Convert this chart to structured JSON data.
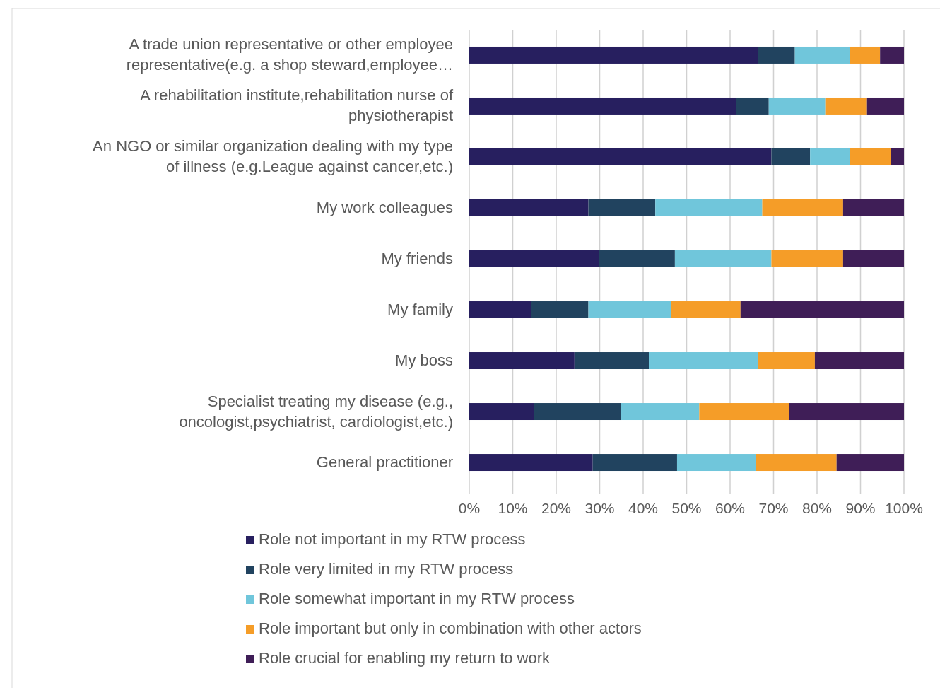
{
  "chart_data": {
    "type": "bar",
    "orientation": "horizontal",
    "stacked": true,
    "categories": [
      "A trade union representative or other employee representative(e.g. a shop steward,employee…",
      "A rehabilitation institute,rehabilitation nurse of physiotherapist",
      "An NGO or similar organization dealing with my type of illness (e.g.League against cancer,etc.)",
      "My work colleagues",
      "My friends",
      "My family",
      "My boss",
      "Specialist treating my disease (e.g., oncologist,psychiatrist, cardiologist,etc.)",
      "General practitioner"
    ],
    "series": [
      {
        "name": "Role not important in my RTW process",
        "color": "#271f5f",
        "values": [
          66.4,
          61.4,
          69.5,
          27.4,
          29.8,
          14.3,
          24.2,
          14.8,
          28.4
        ]
      },
      {
        "name": "Role very limited in my RTW process",
        "color": "#21435f",
        "values": [
          8.5,
          7.5,
          8.9,
          15.4,
          17.5,
          13.1,
          17.1,
          20.0,
          19.4
        ]
      },
      {
        "name": "Role somewhat important in my RTW process",
        "color": "#70c6db",
        "values": [
          12.6,
          13.0,
          9.1,
          24.6,
          22.2,
          19.0,
          25.1,
          18.1,
          18.1
        ]
      },
      {
        "name": "Role important but only in combination with other actors",
        "color": "#f59d28",
        "values": [
          7.0,
          9.6,
          9.5,
          18.6,
          16.5,
          16.0,
          13.1,
          20.6,
          18.6
        ]
      },
      {
        "name": "Role crucial for enabling my return to work",
        "color": "#3f1e57",
        "values": [
          5.5,
          8.5,
          3.0,
          14.0,
          14.0,
          37.6,
          20.5,
          26.5,
          15.5
        ]
      }
    ],
    "xlim": [
      0,
      100
    ],
    "xticks": [
      {
        "value": 0,
        "label": "0%"
      },
      {
        "value": 10,
        "label": "10%"
      },
      {
        "value": 20,
        "label": "20%"
      },
      {
        "value": 30,
        "label": "30%"
      },
      {
        "value": 40,
        "label": "40%"
      },
      {
        "value": 50,
        "label": "50%"
      },
      {
        "value": 60,
        "label": "60%"
      },
      {
        "value": 70,
        "label": "70%"
      },
      {
        "value": 80,
        "label": "80%"
      },
      {
        "value": 90,
        "label": "90%"
      },
      {
        "value": 100,
        "label": "100%"
      }
    ],
    "grid": "x",
    "legend": "bottom"
  }
}
